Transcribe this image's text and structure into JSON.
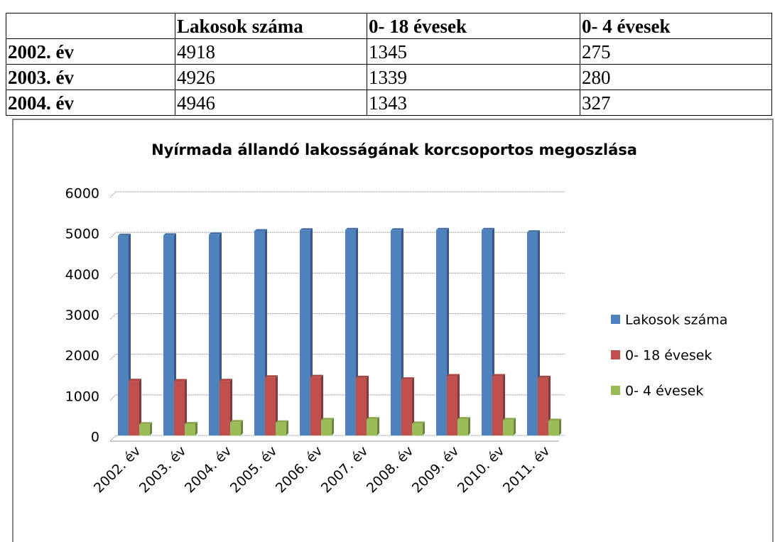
{
  "table": {
    "columns": [
      "Lakosok száma",
      "0- 18 évesek",
      "0- 4 évesek"
    ],
    "rows": [
      [
        "2002. év",
        "4918",
        "1345",
        "275"
      ],
      [
        "2003. év",
        "4926",
        "1339",
        "280"
      ],
      [
        "2004. év",
        "4946",
        "1343",
        "327"
      ]
    ]
  },
  "chart_data": {
    "type": "bar",
    "title": "Nyírmada állandó lakosságának korcsoportos megoszlása",
    "categories": [
      "2002. év",
      "2003. év",
      "2004. év",
      "2005. év",
      "2006. év",
      "2007. év",
      "2008. év",
      "2009. év",
      "2010. év",
      "2011. év"
    ],
    "series": [
      {
        "name": "Lakosok száma",
        "color": "#4f81bd",
        "values": [
          4918,
          4926,
          4946,
          5030,
          5050,
          5060,
          5050,
          5060,
          5060,
          5000
        ]
      },
      {
        "name": "0- 18 évesek",
        "color": "#c0504d",
        "values": [
          1345,
          1339,
          1343,
          1430,
          1440,
          1420,
          1380,
          1460,
          1460,
          1420
        ]
      },
      {
        "name": "0- 4 évesek",
        "color": "#9bbb59",
        "values": [
          275,
          280,
          327,
          320,
          380,
          400,
          290,
          400,
          380,
          360
        ]
      }
    ],
    "ylim": [
      0,
      6000
    ],
    "yticks": [
      0,
      1000,
      2000,
      3000,
      4000,
      5000,
      6000
    ],
    "grid": true,
    "legend": "right"
  }
}
